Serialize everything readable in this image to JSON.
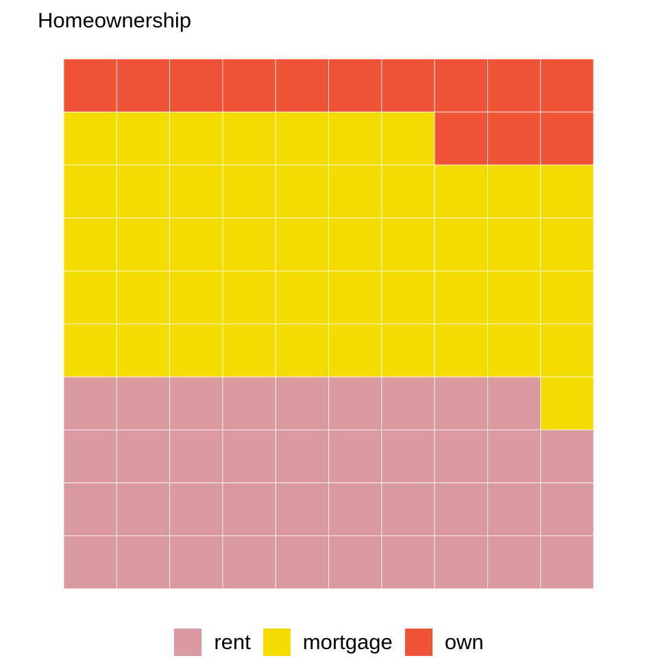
{
  "chart_data": {
    "type": "waffle",
    "title": "Homeownership",
    "grid": {
      "rows": 10,
      "cols": 10
    },
    "fill_order": "row-wise from bottom-left, left to right",
    "series": [
      {
        "name": "rent",
        "value": 39,
        "color": "#d9999e"
      },
      {
        "name": "mortgage",
        "value": 48,
        "color": "#f4dc00"
      },
      {
        "name": "own",
        "value": 13,
        "color": "#f05436"
      }
    ],
    "legend": {
      "position": "bottom"
    }
  }
}
